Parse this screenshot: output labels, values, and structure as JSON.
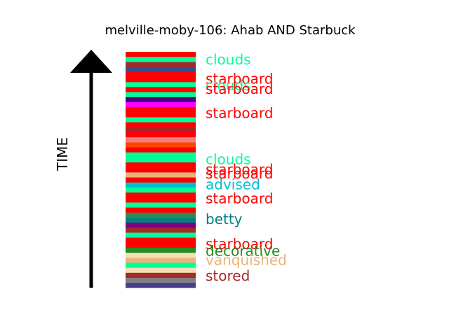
{
  "chart_data": {
    "type": "bar",
    "title": "melville-moby-106: Ahab AND Starbuck",
    "ylabel": "TIME",
    "bands": [
      {
        "term": "",
        "color": "#483d8b"
      },
      {
        "term": "",
        "color": "#808080"
      },
      {
        "term": "stored",
        "color": "#a52a2a"
      },
      {
        "term": "",
        "color": "#f5deb3"
      },
      {
        "term": "",
        "color": "#00ff99"
      },
      {
        "term": "vanquished",
        "color": "#e9b47a"
      },
      {
        "term": "",
        "color": "#f5deb3"
      },
      {
        "term": "decorative",
        "color": "#228b22"
      },
      {
        "term": "starboard",
        "color": "#ff0000"
      },
      {
        "term": "",
        "color": "#ff0000"
      },
      {
        "term": "",
        "color": "#00ff99"
      },
      {
        "term": "",
        "color": "#a52a2a"
      },
      {
        "term": "",
        "color": "#800080"
      },
      {
        "term": "betty",
        "color": "#008080"
      },
      {
        "term": "",
        "color": "#2e8b57"
      },
      {
        "term": "",
        "color": "#ff0000"
      },
      {
        "term": "",
        "color": "#00ff99"
      },
      {
        "term": "starboard",
        "color": "#ff0000"
      },
      {
        "term": "",
        "color": "#ff0000"
      },
      {
        "term": "",
        "color": "#00ff99"
      },
      {
        "term": "advised",
        "color": "#00c0d0"
      },
      {
        "term": "starboard",
        "color": "#ff0000"
      },
      {
        "term": "",
        "color": "#e9b47a"
      },
      {
        "term": "starboard",
        "color": "#ff0000"
      },
      {
        "term": "",
        "color": "#ff0000"
      },
      {
        "term": "clouds",
        "color": "#00ff99"
      },
      {
        "term": "",
        "color": "#00ff99"
      },
      {
        "term": "",
        "color": "#ff0000"
      },
      {
        "term": "",
        "color": "#ff4500"
      },
      {
        "term": "",
        "color": "#f08080"
      },
      {
        "term": "",
        "color": "#ff0000"
      },
      {
        "term": "",
        "color": "#b22222"
      },
      {
        "term": "",
        "color": "#ff0000"
      },
      {
        "term": "",
        "color": "#00ff99"
      },
      {
        "term": "starboard",
        "color": "#ff0000"
      },
      {
        "term": "",
        "color": "#ff0000"
      },
      {
        "term": "",
        "color": "#ff00ff"
      },
      {
        "term": "",
        "color": "#4b0082"
      },
      {
        "term": "",
        "color": "#00ff99"
      },
      {
        "term": "starboard",
        "color": "#ff0000"
      },
      {
        "term": "clouds",
        "color": "#00ff99"
      },
      {
        "term": "starboard",
        "color": "#ff0000"
      },
      {
        "term": "",
        "color": "#ff0000"
      },
      {
        "term": "",
        "color": "#2f4f8f"
      },
      {
        "term": "",
        "color": "#a52a2a"
      },
      {
        "term": "clouds",
        "color": "#00ff99"
      },
      {
        "term": "",
        "color": "#ff0000"
      }
    ],
    "labels": [
      {
        "text": "clouds",
        "color": "#00ff99",
        "band": 45.5
      },
      {
        "text": "starboard",
        "color": "#ff0000",
        "band": 41.6
      },
      {
        "text": "clouds",
        "color": "#00ff99",
        "band": 40.3
      },
      {
        "text": "starboard",
        "color": "#ff0000",
        "band": 39.6
      },
      {
        "text": "starboard",
        "color": "#ff0000",
        "band": 34.8
      },
      {
        "text": "clouds",
        "color": "#00ff99",
        "band": 25.6
      },
      {
        "text": "starboard",
        "color": "#ff0000",
        "band": 23.6
      },
      {
        "text": "starboard",
        "color": "#ff0000",
        "band": 22.7
      },
      {
        "text": "advised",
        "color": "#00c0d0",
        "band": 20.6
      },
      {
        "text": "starboard",
        "color": "#ff0000",
        "band": 17.8
      },
      {
        "text": "betty",
        "color": "#008080",
        "band": 13.7
      },
      {
        "text": "starboard",
        "color": "#ff0000",
        "band": 8.7
      },
      {
        "text": "decorative",
        "color": "#228b22",
        "band": 7.3
      },
      {
        "text": "vanquished",
        "color": "#e9b47a",
        "band": 5.5
      },
      {
        "text": "stored",
        "color": "#a52a2a",
        "band": 2.4
      }
    ]
  }
}
